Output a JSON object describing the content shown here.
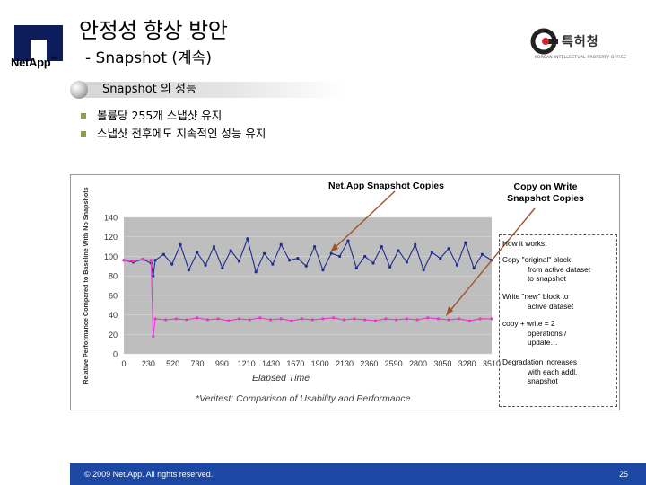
{
  "brand": {
    "logo_text": "NetApp",
    "logo_mark": "™"
  },
  "slide": {
    "title": "안정성 향상 방안",
    "subtitle": "- Snapshot (계속)",
    "section": "Snapshot 의 성능",
    "bullets": [
      "볼륨당 255개 스냅샷 유지",
      "스냅샷 전후에도 지속적인 성능 유지"
    ]
  },
  "kipo": {
    "name": "특허청",
    "sub": "KOREAN INTELLECTUAL PROPERTY OFFICE"
  },
  "annotations": {
    "netapp_label": "Net.App Snapshot Copies",
    "cow_line1": "Copy on Write",
    "cow_line2": "Snapshot Copies"
  },
  "how_it_works": {
    "heading": "How it works:",
    "items": [
      {
        "first": "Copy \"original\" block",
        "rest": [
          "from active dataset",
          "to snapshot"
        ]
      },
      {
        "first": "Write \"new\" block to",
        "rest": [
          "active dataset"
        ]
      },
      {
        "first": "copy + write = 2",
        "rest": [
          "operations /",
          "update…"
        ]
      },
      {
        "first": "Degradation increases",
        "rest": [
          "with each addl.",
          "snapshot"
        ]
      }
    ]
  },
  "citation": "*Veritest: Comparison of Usability and Performance",
  "footer": {
    "copyright": "© 2009 Net.App.  All rights reserved.",
    "page": "25"
  },
  "colors": {
    "netapp_series": "#1f2c8f",
    "cow_series": "#e23ad0",
    "plot_bg": "#bebebe",
    "footer": "#1c47a3",
    "bullet": "#8aa34a"
  },
  "chart_data": {
    "type": "line",
    "title": "",
    "xlabel": "Elapsed Time",
    "ylabel": "Relative Performance Compared to Baseline With No Snapshots",
    "ylim": [
      0,
      140
    ],
    "yticks": [
      0,
      20,
      40,
      60,
      80,
      100,
      120,
      140
    ],
    "xlim": [
      0,
      3510
    ],
    "xticks": [
      0,
      230,
      520,
      730,
      990,
      1210,
      1430,
      1670,
      1900,
      2130,
      2360,
      2590,
      2800,
      3050,
      3280,
      3510
    ],
    "grid": true,
    "series": [
      {
        "name": "NetApp Snapshot Copies",
        "color": "#1f2c8f",
        "x": [
          0,
          90,
          180,
          260,
          280,
          300,
          380,
          460,
          540,
          620,
          700,
          780,
          860,
          940,
          1020,
          1100,
          1180,
          1260,
          1340,
          1420,
          1500,
          1580,
          1660,
          1740,
          1820,
          1900,
          1980,
          2060,
          2140,
          2220,
          2300,
          2380,
          2460,
          2540,
          2620,
          2700,
          2780,
          2860,
          2940,
          3020,
          3100,
          3180,
          3260,
          3340,
          3420,
          3510
        ],
        "values": [
          96,
          94,
          97,
          93,
          80,
          96,
          102,
          92,
          112,
          86,
          104,
          91,
          110,
          88,
          106,
          95,
          118,
          84,
          103,
          92,
          112,
          96,
          98,
          90,
          110,
          86,
          103,
          100,
          116,
          88,
          100,
          93,
          110,
          89,
          106,
          94,
          112,
          86,
          104,
          98,
          108,
          91,
          114,
          88,
          102,
          96
        ]
      },
      {
        "name": "Copy on Write Snapshot Copies",
        "color": "#e23ad0",
        "x": [
          0,
          90,
          180,
          260,
          280,
          300,
          400,
          500,
          600,
          700,
          800,
          900,
          1000,
          1100,
          1200,
          1300,
          1400,
          1500,
          1600,
          1700,
          1800,
          1900,
          2000,
          2100,
          2200,
          2300,
          2400,
          2500,
          2600,
          2700,
          2800,
          2900,
          3000,
          3100,
          3200,
          3300,
          3400,
          3510
        ],
        "values": [
          96,
          95,
          97,
          96,
          18,
          36,
          35,
          36,
          35,
          37,
          35,
          36,
          34,
          36,
          35,
          37,
          35,
          36,
          34,
          36,
          35,
          36,
          37,
          35,
          36,
          35,
          34,
          36,
          35,
          36,
          35,
          37,
          36,
          35,
          36,
          34,
          36,
          36
        ]
      }
    ]
  }
}
